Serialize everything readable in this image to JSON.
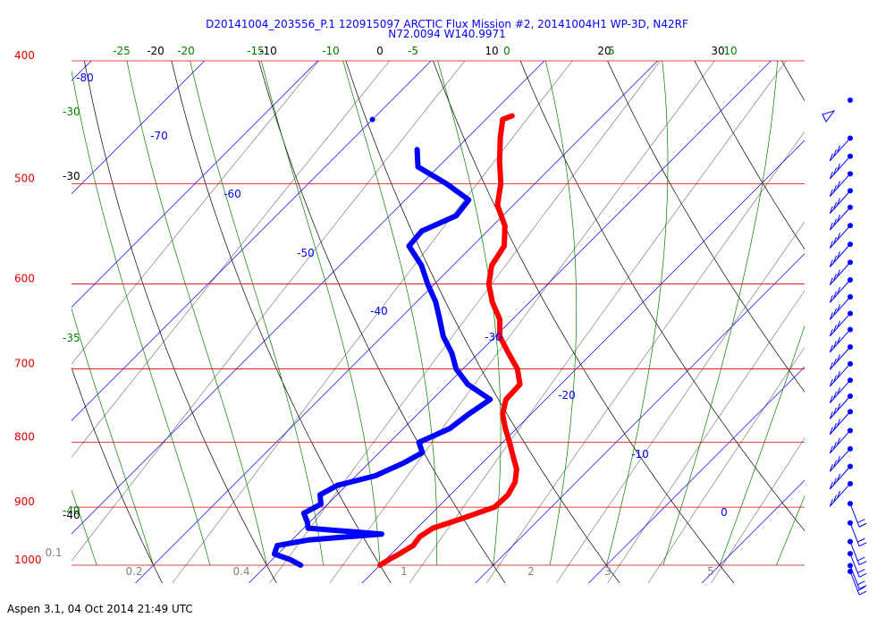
{
  "window": {
    "title_line1": "D20141004_203556_P.1 120915097 ARCTIC Flux Mission #2, 20141004H1 WP-3D, N42RF",
    "title_line2": "N72.0094 W140.9971",
    "footer": "Aspen 3.1, 04 Oct 2014  21:49 UTC"
  },
  "colors": {
    "isobar": "#e00000",
    "isotherm": "#0000ff",
    "dry_adiabat": "#000000",
    "moist_adiabat": "#008000",
    "mixing_ratio": "#808080",
    "temperature": "#ff0000",
    "dewpoint": "#0000ff",
    "wind": "#0000ff"
  },
  "chart_data": {
    "type": "skew-t log-p sounding diagram",
    "pressure_range_hPa": [
      1000,
      400
    ],
    "pressure_levels": [
      "400",
      "500",
      "600",
      "700",
      "800",
      "900",
      "1000"
    ],
    "temperature_range_C_at_1000hPa": [
      -20,
      30
    ],
    "skew_deg": 45,
    "top_labels": [
      {
        "text": "-25",
        "kind": "moist"
      },
      {
        "text": "-20",
        "kind": "dry"
      },
      {
        "text": "-20",
        "kind": "moist"
      },
      {
        "text": "-15",
        "kind": "moist"
      },
      {
        "text": "-10",
        "kind": "dry"
      },
      {
        "text": "-10",
        "kind": "moist"
      },
      {
        "text": "0",
        "kind": "dry"
      },
      {
        "text": "-5",
        "kind": "moist"
      },
      {
        "text": "10",
        "kind": "dry"
      },
      {
        "text": "0",
        "kind": "moist"
      },
      {
        "text": "20",
        "kind": "dry"
      },
      {
        "text": "5",
        "kind": "moist"
      },
      {
        "text": "30",
        "kind": "dry"
      },
      {
        "text": "10",
        "kind": "moist"
      }
    ],
    "isotherm_labels": [
      "-80",
      "-70",
      "-60",
      "-50",
      "-40",
      "-30",
      "-20",
      "-10",
      "0"
    ],
    "left_labels": [
      {
        "text": "-30",
        "kind": "moist"
      },
      {
        "text": "-30",
        "kind": "dry"
      },
      {
        "text": "-35",
        "kind": "moist"
      },
      {
        "text": "-40",
        "kind": "moist"
      },
      {
        "text": "-40",
        "kind": "dry"
      }
    ],
    "mixing_ratio_labels": [
      "0.1",
      "0.2",
      "0.4",
      "1",
      "2",
      "3",
      "5"
    ],
    "temperature_C": [
      {
        "p": 1000,
        "t": 0.0
      },
      {
        "p": 990,
        "t": 0.3
      },
      {
        "p": 980,
        "t": 0.7
      },
      {
        "p": 965,
        "t": 1.2
      },
      {
        "p": 950,
        "t": 1.0
      },
      {
        "p": 935,
        "t": 1.4
      },
      {
        "p": 920,
        "t": 3.0
      },
      {
        "p": 900,
        "t": 5.0
      },
      {
        "p": 880,
        "t": 5.1
      },
      {
        "p": 860,
        "t": 4.6
      },
      {
        "p": 840,
        "t": 3.6
      },
      {
        "p": 820,
        "t": 2.1
      },
      {
        "p": 800,
        "t": 0.6
      },
      {
        "p": 780,
        "t": -1.0
      },
      {
        "p": 760,
        "t": -2.5
      },
      {
        "p": 740,
        "t": -3.5
      },
      {
        "p": 720,
        "t": -3.6
      },
      {
        "p": 700,
        "t": -5.2
      },
      {
        "p": 680,
        "t": -7.4
      },
      {
        "p": 660,
        "t": -9.6
      },
      {
        "p": 640,
        "t": -11.1
      },
      {
        "p": 620,
        "t": -13.3
      },
      {
        "p": 600,
        "t": -15.2
      },
      {
        "p": 580,
        "t": -16.6
      },
      {
        "p": 560,
        "t": -17.2
      },
      {
        "p": 540,
        "t": -18.9
      },
      {
        "p": 520,
        "t": -21.4
      },
      {
        "p": 500,
        "t": -23.0
      },
      {
        "p": 480,
        "t": -25.1
      },
      {
        "p": 460,
        "t": -27.1
      },
      {
        "p": 445,
        "t": -28.5
      },
      {
        "p": 442,
        "t": -28.0
      }
    ],
    "dewpoint_C": [
      {
        "p": 1000,
        "t": -7.0
      },
      {
        "p": 990,
        "t": -8.4
      },
      {
        "p": 980,
        "t": -10.3
      },
      {
        "p": 965,
        "t": -10.8
      },
      {
        "p": 955,
        "t": -8.5
      },
      {
        "p": 945,
        "t": -2.6
      },
      {
        "p": 935,
        "t": -9.6
      },
      {
        "p": 925,
        "t": -10.2
      },
      {
        "p": 910,
        "t": -11.3
      },
      {
        "p": 895,
        "t": -10.6
      },
      {
        "p": 880,
        "t": -11.5
      },
      {
        "p": 865,
        "t": -10.8
      },
      {
        "p": 850,
        "t": -8.3
      },
      {
        "p": 830,
        "t": -6.9
      },
      {
        "p": 815,
        "t": -6.2
      },
      {
        "p": 800,
        "t": -7.4
      },
      {
        "p": 780,
        "t": -5.9
      },
      {
        "p": 760,
        "t": -5.5
      },
      {
        "p": 740,
        "t": -4.9
      },
      {
        "p": 720,
        "t": -8.2
      },
      {
        "p": 700,
        "t": -10.6
      },
      {
        "p": 680,
        "t": -12.4
      },
      {
        "p": 660,
        "t": -14.6
      },
      {
        "p": 640,
        "t": -16.4
      },
      {
        "p": 620,
        "t": -18.3
      },
      {
        "p": 600,
        "t": -20.6
      },
      {
        "p": 580,
        "t": -22.8
      },
      {
        "p": 560,
        "t": -25.6
      },
      {
        "p": 545,
        "t": -25.8
      },
      {
        "p": 530,
        "t": -24.1
      },
      {
        "p": 515,
        "t": -24.4
      },
      {
        "p": 500,
        "t": -27.8
      },
      {
        "p": 485,
        "t": -31.8
      },
      {
        "p": 470,
        "t": -33.4
      }
    ],
    "top_markers": [
      {
        "kind": "dewpoint",
        "p": 445,
        "t": -40.0
      },
      {
        "kind": "temperature",
        "p": 445,
        "t": -28.5
      }
    ],
    "wind_staff_levels_hPa": [
      445,
      475,
      490,
      505,
      520,
      535,
      552,
      570,
      588,
      606,
      624,
      642,
      660,
      680,
      700,
      720,
      740,
      760,
      785,
      810,
      835,
      860,
      890,
      920,
      950,
      970,
      990,
      1000
    ]
  }
}
